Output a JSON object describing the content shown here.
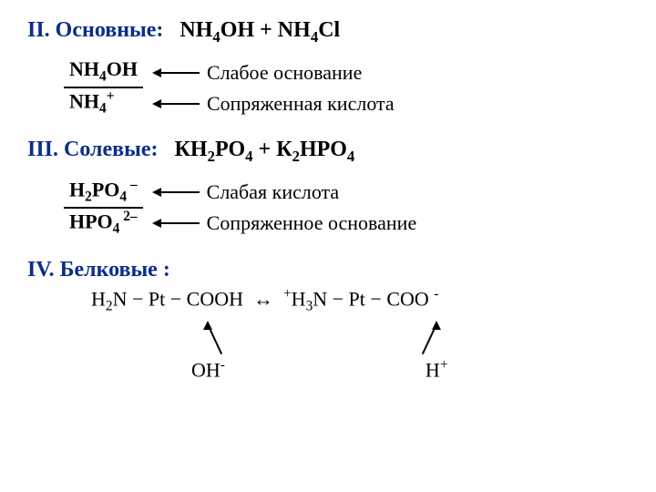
{
  "colors": {
    "heading": "#0b2e8a",
    "text": "#000000",
    "background": "#ffffff"
  },
  "fonts": {
    "family": "Times New Roman",
    "heading_size": 24,
    "body_size": 22
  },
  "section2": {
    "label": "II. Основные:",
    "formula": "NH₄OH + NH₄Cl",
    "numerator": "NH₄OH",
    "denominator": "NH₄⁺",
    "desc_top": "Слабое основание",
    "desc_bottom": "Сопряженная кислота"
  },
  "section3": {
    "label": "III. Солевые:",
    "formula": "КН₂РО₄ + К₂НРО₄",
    "numerator": "H₂PO₄⁻",
    "denominator": "HPO₄²⁻",
    "desc_top": "Слабая кислота",
    "desc_bottom": "Сопряженное основание"
  },
  "section4": {
    "label": "IV. Белковые :",
    "equation": "H₂N − Pt − COOH ↔ ⁺H₃N − Pt − COO ⁻",
    "left_ion": "OH⁻",
    "right_ion": "H⁺"
  }
}
